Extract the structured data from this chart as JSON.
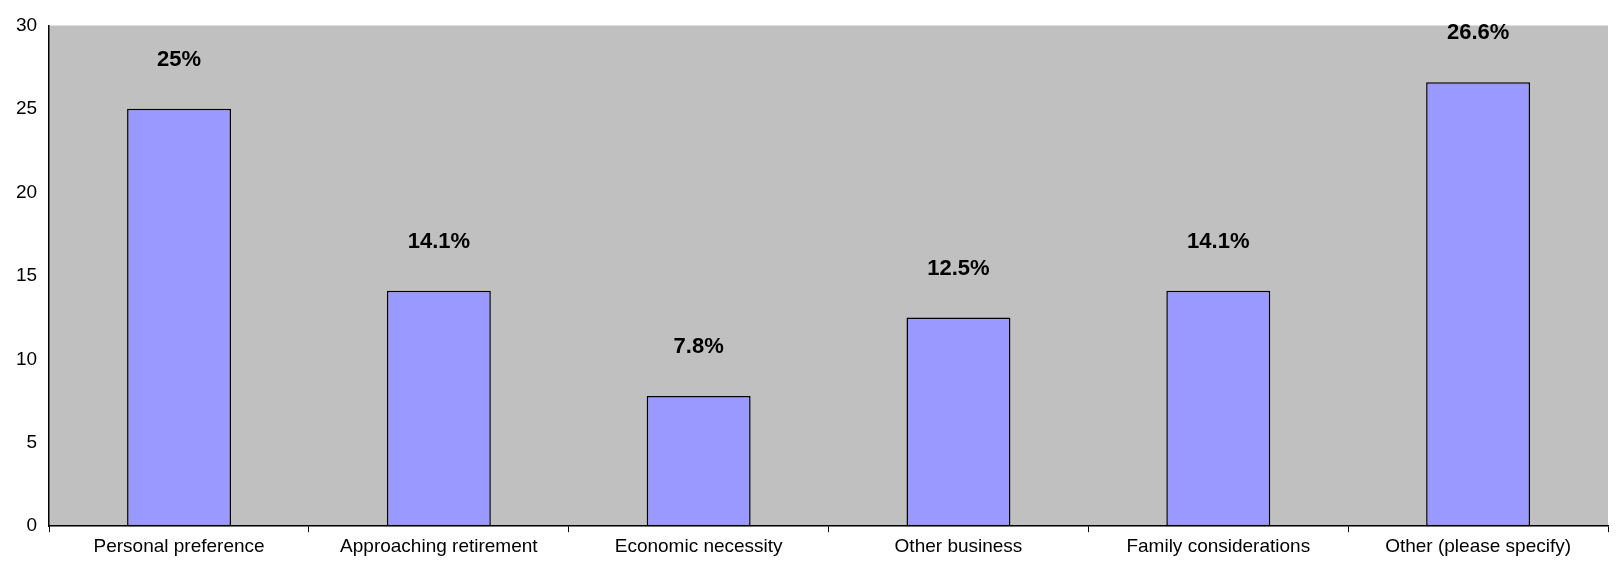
{
  "chart_data": {
    "type": "bar",
    "categories": [
      "Personal preference",
      "Approaching retirement",
      "Economic necessity",
      "Other business",
      "Family considerations",
      "Other (please specify)"
    ],
    "values": [
      25,
      14.1,
      7.8,
      12.5,
      14.1,
      26.6
    ],
    "value_labels": [
      "25%",
      "14.1%",
      "7.8%",
      "12.5%",
      "14.1%",
      "26.6%"
    ],
    "color": "#9999ff",
    "ylim": [
      0,
      30
    ],
    "yticks": [
      0,
      5,
      10,
      15,
      20,
      25,
      30
    ],
    "grid": false,
    "legend": false
  }
}
